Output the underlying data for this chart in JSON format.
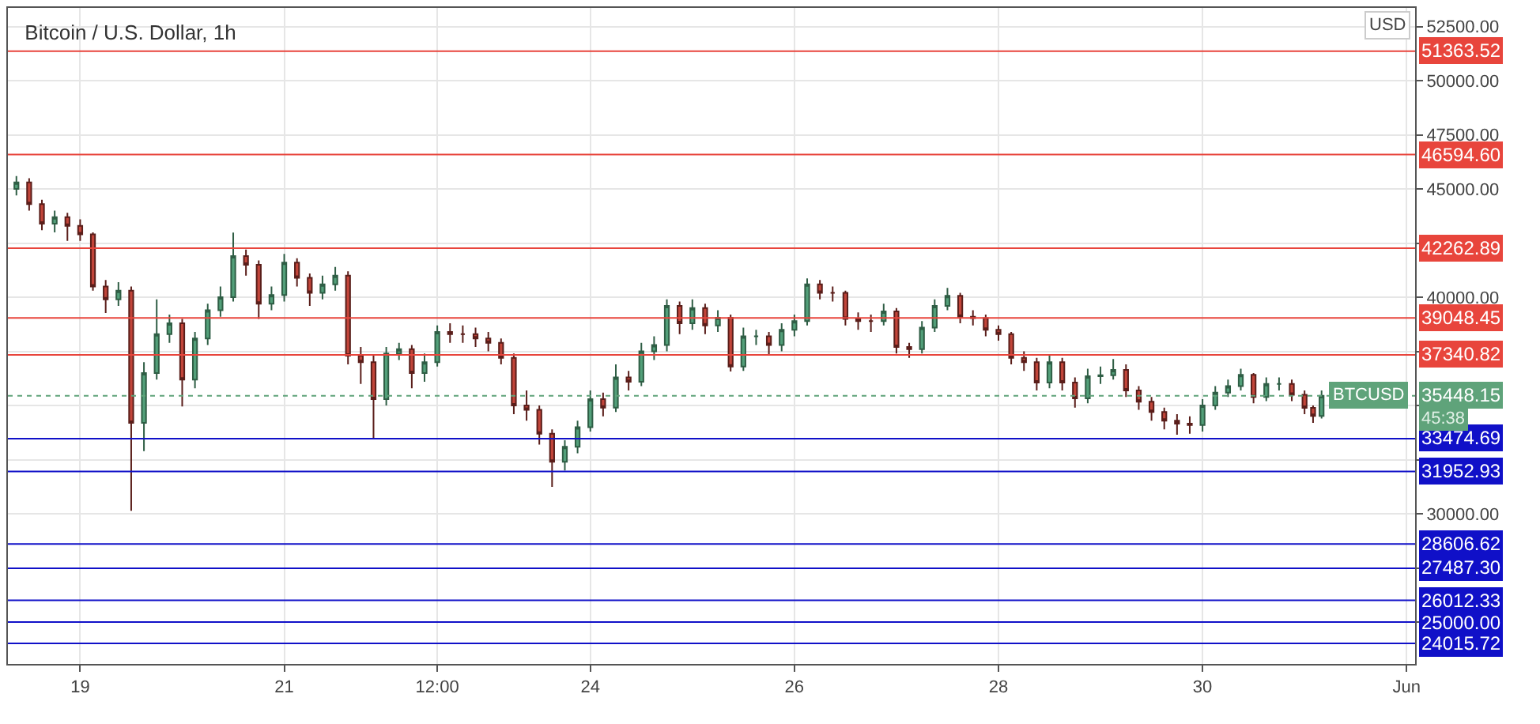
{
  "chart_data": {
    "type": "candlestick",
    "title": "Bitcoin / U.S. Dollar, 1h",
    "x": [
      "--05-18T09:00",
      "--05-18T12:00",
      "--05-18T15:00",
      "--05-18T18:00",
      "--05-18T21:00",
      "--05-19T00:00",
      "--05-19T03:00",
      "--05-19T06:00",
      "--05-19T09:00",
      "--05-19T12:00",
      "--05-19T15:00",
      "--05-19T18:00",
      "--05-19T21:00",
      "--05-20T00:00",
      "--05-20T03:00",
      "--05-20T06:00",
      "--05-20T09:00",
      "--05-20T12:00",
      "--05-20T15:00",
      "--05-20T18:00",
      "--05-20T21:00",
      "--05-21T00:00",
      "--05-21T03:00",
      "--05-21T06:00",
      "--05-21T09:00",
      "--05-21T12:00",
      "--05-21T15:00",
      "--05-21T18:00",
      "--05-21T21:00",
      "--05-22T00:00",
      "--05-22T03:00",
      "--05-22T06:00",
      "--05-22T09:00",
      "--05-22T12:00",
      "--05-22T15:00",
      "--05-22T18:00",
      "--05-22T21:00",
      "--05-23T00:00",
      "--05-23T03:00",
      "--05-23T06:00",
      "--05-23T09:00",
      "--05-23T12:00",
      "--05-23T15:00",
      "--05-23T18:00",
      "--05-23T21:00",
      "--05-24T00:00",
      "--05-24T03:00",
      "--05-24T06:00",
      "--05-24T09:00",
      "--05-24T12:00",
      "--05-24T15:00",
      "--05-24T18:00",
      "--05-24T21:00",
      "--05-25T00:00",
      "--05-25T03:00",
      "--05-25T06:00",
      "--05-25T09:00",
      "--05-25T12:00",
      "--05-25T15:00",
      "--05-25T18:00",
      "--05-25T21:00",
      "--05-26T00:00",
      "--05-26T03:00",
      "--05-26T06:00",
      "--05-26T09:00",
      "--05-26T12:00",
      "--05-26T15:00",
      "--05-26T18:00",
      "--05-26T21:00",
      "--05-27T00:00",
      "--05-27T03:00",
      "--05-27T06:00",
      "--05-27T09:00",
      "--05-27T12:00",
      "--05-27T15:00",
      "--05-27T18:00",
      "--05-27T21:00",
      "--05-28T00:00",
      "--05-28T03:00",
      "--05-28T06:00",
      "--05-28T09:00",
      "--05-28T12:00",
      "--05-28T15:00",
      "--05-28T18:00",
      "--05-28T21:00",
      "--05-29T00:00",
      "--05-29T03:00",
      "--05-29T06:00",
      "--05-29T09:00",
      "--05-29T12:00",
      "--05-29T15:00",
      "--05-29T18:00",
      "--05-29T21:00",
      "--05-30T00:00",
      "--05-30T03:00",
      "--05-30T06:00",
      "--05-30T09:00",
      "--05-30T12:00",
      "--05-30T15:00",
      "--05-30T18:00",
      "--05-30T21:00",
      "--05-31T00:00",
      "--05-31T02:00",
      "--05-31T04:00"
    ],
    "ohlc": [
      [
        45000,
        45600,
        44700,
        45300
      ],
      [
        45300,
        45500,
        44000,
        44300
      ],
      [
        44300,
        44500,
        43100,
        43400
      ],
      [
        43400,
        44000,
        43000,
        43700
      ],
      [
        43700,
        43900,
        42600,
        43300
      ],
      [
        43300,
        43600,
        42600,
        42900
      ],
      [
        42900,
        43000,
        40300,
        40500
      ],
      [
        40500,
        40800,
        39270,
        39900
      ],
      [
        39900,
        40700,
        39600,
        40300
      ],
      [
        40300,
        40500,
        30140,
        34200
      ],
      [
        34200,
        37000,
        32900,
        36500
      ],
      [
        36500,
        39900,
        36200,
        38300
      ],
      [
        38300,
        39200,
        37900,
        38800
      ],
      [
        38800,
        39000,
        34960,
        36200
      ],
      [
        36200,
        38400,
        35800,
        38100
      ],
      [
        38100,
        39700,
        37800,
        39400
      ],
      [
        39400,
        40500,
        39100,
        40000
      ],
      [
        40000,
        42990,
        39800,
        41900
      ],
      [
        41900,
        42200,
        41000,
        41500
      ],
      [
        41500,
        41700,
        39000,
        39700
      ],
      [
        39700,
        40500,
        39400,
        40100
      ],
      [
        40100,
        42000,
        39800,
        41600
      ],
      [
        41600,
        41800,
        40500,
        40900
      ],
      [
        40900,
        41100,
        39600,
        40200
      ],
      [
        40200,
        41000,
        39900,
        40600
      ],
      [
        40600,
        41400,
        40300,
        41000
      ],
      [
        41000,
        41200,
        36900,
        37300
      ],
      [
        37300,
        37700,
        36000,
        37000
      ],
      [
        37000,
        37300,
        33500,
        35300
      ],
      [
        35300,
        37700,
        35000,
        37400
      ],
      [
        37400,
        37900,
        37100,
        37600
      ],
      [
        37600,
        37800,
        35800,
        36500
      ],
      [
        36500,
        37400,
        36100,
        37000
      ],
      [
        37000,
        38700,
        36800,
        38400
      ],
      [
        38400,
        38800,
        37900,
        38300
      ],
      [
        38300,
        38700,
        37900,
        38300
      ],
      [
        38300,
        38600,
        37700,
        38100
      ],
      [
        38100,
        38400,
        37500,
        37900
      ],
      [
        37900,
        38100,
        36900,
        37200
      ],
      [
        37200,
        37400,
        34600,
        35000
      ],
      [
        35000,
        35700,
        34300,
        34800
      ],
      [
        34800,
        35000,
        33200,
        33700
      ],
      [
        33700,
        33900,
        31240,
        32400
      ],
      [
        32400,
        33400,
        32000,
        33100
      ],
      [
        33100,
        34300,
        32800,
        34000
      ],
      [
        34000,
        35700,
        33800,
        35300
      ],
      [
        35300,
        35600,
        34500,
        34900
      ],
      [
        34900,
        36900,
        34700,
        36300
      ],
      [
        36300,
        36600,
        35700,
        36100
      ],
      [
        36100,
        37900,
        35900,
        37500
      ],
      [
        37500,
        38200,
        37100,
        37800
      ],
      [
        37800,
        39900,
        37500,
        39600
      ],
      [
        39600,
        39800,
        38300,
        38800
      ],
      [
        38800,
        39900,
        38500,
        39500
      ],
      [
        39500,
        39700,
        38300,
        38700
      ],
      [
        38700,
        39400,
        38400,
        39050
      ],
      [
        39050,
        39200,
        36570,
        36800
      ],
      [
        36800,
        38600,
        36600,
        38200
      ],
      [
        38200,
        38500,
        37800,
        38200
      ],
      [
        38200,
        38400,
        37300,
        37800
      ],
      [
        37800,
        38800,
        37500,
        38500
      ],
      [
        38500,
        39200,
        38200,
        38900
      ],
      [
        38900,
        40870,
        38700,
        40600
      ],
      [
        40600,
        40800,
        39900,
        40200
      ],
      [
        40200,
        40500,
        39800,
        40200
      ],
      [
        40200,
        40300,
        38700,
        39000
      ],
      [
        39000,
        39300,
        38500,
        38900
      ],
      [
        38900,
        39200,
        38400,
        38900
      ],
      [
        38900,
        39700,
        38700,
        39350
      ],
      [
        39350,
        39500,
        37400,
        37700
      ],
      [
        37700,
        37900,
        37200,
        37600
      ],
      [
        37600,
        38900,
        37400,
        38600
      ],
      [
        38600,
        39900,
        38400,
        39600
      ],
      [
        39600,
        40430,
        39400,
        40070
      ],
      [
        40070,
        40200,
        38800,
        39100
      ],
      [
        39100,
        39400,
        38700,
        39040
      ],
      [
        39040,
        39200,
        38200,
        38500
      ],
      [
        38500,
        38700,
        38000,
        38300
      ],
      [
        38300,
        38400,
        36900,
        37200
      ],
      [
        37200,
        37500,
        36600,
        37000
      ],
      [
        37000,
        37200,
        35700,
        36060
      ],
      [
        36060,
        37300,
        35800,
        37000
      ],
      [
        37000,
        37200,
        35700,
        36060
      ],
      [
        36060,
        36300,
        34900,
        35330
      ],
      [
        35330,
        36700,
        35100,
        36350
      ],
      [
        36350,
        36800,
        36000,
        36400
      ],
      [
        36400,
        37150,
        36200,
        36650
      ],
      [
        36650,
        36900,
        35400,
        35700
      ],
      [
        35700,
        35900,
        34800,
        35180
      ],
      [
        35180,
        35400,
        34300,
        34700
      ],
      [
        34700,
        34900,
        33900,
        34300
      ],
      [
        34300,
        34600,
        33650,
        34160
      ],
      [
        34160,
        34500,
        33700,
        34100
      ],
      [
        34100,
        35300,
        33800,
        35000
      ],
      [
        35000,
        35900,
        34800,
        35600
      ],
      [
        35600,
        36200,
        35400,
        35900
      ],
      [
        35900,
        36700,
        35700,
        36420
      ],
      [
        36420,
        36500,
        35100,
        35400
      ],
      [
        35400,
        36300,
        35200,
        36000
      ],
      [
        36000,
        36300,
        35700,
        36000
      ],
      [
        36000,
        36200,
        35200,
        35500
      ],
      [
        35500,
        35700,
        34600,
        34890
      ],
      [
        34890,
        35000,
        34200,
        34520
      ],
      [
        34520,
        35700,
        34400,
        35448.15
      ]
    ],
    "xlim": [
      "--05-18T07:00",
      "--06-01T02:00"
    ],
    "xticks": [
      {
        "value": "--05-19",
        "label": "19"
      },
      {
        "value": "--05-21",
        "label": "21"
      },
      {
        "value": "--05-22T12:00",
        "label": "12:00"
      },
      {
        "value": "--05-24",
        "label": "24"
      },
      {
        "value": "--05-26",
        "label": "26"
      },
      {
        "value": "--05-28",
        "label": "28"
      },
      {
        "value": "--05-30",
        "label": "30"
      },
      {
        "value": "--06-01",
        "label": "Jun"
      }
    ],
    "ylim": [
      23070,
      53360
    ],
    "yticks": [
      {
        "value": 25000,
        "label": null
      },
      {
        "value": 27500,
        "label": null
      },
      {
        "value": 30000,
        "label": "30000.00"
      },
      {
        "value": 32500,
        "label": null
      },
      {
        "value": 35000,
        "label": null
      },
      {
        "value": 37500,
        "label": null
      },
      {
        "value": 40000,
        "label": "40000.00"
      },
      {
        "value": 42500,
        "label": null
      },
      {
        "value": 45000,
        "label": "45000.00"
      },
      {
        "value": 47500,
        "label": "47500.00"
      },
      {
        "value": 50000,
        "label": "50000.00"
      },
      {
        "value": 52500,
        "label": "52500.00"
      }
    ],
    "grid": true,
    "ref_lines": [
      {
        "axis": "y",
        "value": 51363.52,
        "label": "51363.52",
        "color": "#e8453c",
        "line_style": "solid"
      },
      {
        "axis": "y",
        "value": 46594.6,
        "label": "46594.60",
        "color": "#e8453c",
        "line_style": "solid"
      },
      {
        "axis": "y",
        "value": 42262.89,
        "label": "42262.89",
        "color": "#e8453c",
        "line_style": "solid"
      },
      {
        "axis": "y",
        "value": 39048.45,
        "label": "39048.45",
        "color": "#e8453c",
        "line_style": "solid"
      },
      {
        "axis": "y",
        "value": 37340.82,
        "label": "37340.82",
        "color": "#e8453c",
        "line_style": "solid"
      },
      {
        "axis": "y",
        "value": 35448.15,
        "label": "35448.15",
        "color": "#5fa37a",
        "line_style": "dotted"
      },
      {
        "axis": "y",
        "value": 33474.69,
        "label": "33474.69",
        "color": "#1010c8",
        "line_style": "solid"
      },
      {
        "axis": "y",
        "value": 31952.93,
        "label": "31952.93",
        "color": "#1010c8",
        "line_style": "solid"
      },
      {
        "axis": "y",
        "value": 28606.62,
        "label": "28606.62",
        "color": "#1010c8",
        "line_style": "solid"
      },
      {
        "axis": "y",
        "value": 27487.3,
        "label": "27487.30",
        "color": "#1010c8",
        "line_style": "solid"
      },
      {
        "axis": "y",
        "value": 26012.33,
        "label": "26012.33",
        "color": "#1010c8",
        "line_style": "solid"
      },
      {
        "axis": "y",
        "value": 25000.0,
        "label": "25000.00",
        "color": "#1010c8",
        "line_style": "solid"
      },
      {
        "axis": "y",
        "value": 24015.72,
        "label": "24015.72",
        "color": "#1010c8",
        "line_style": "solid"
      }
    ],
    "annotations": [
      {
        "text": "BTCUSD",
        "y": 35448.15
      },
      "45:38",
      "USD"
    ]
  }
}
